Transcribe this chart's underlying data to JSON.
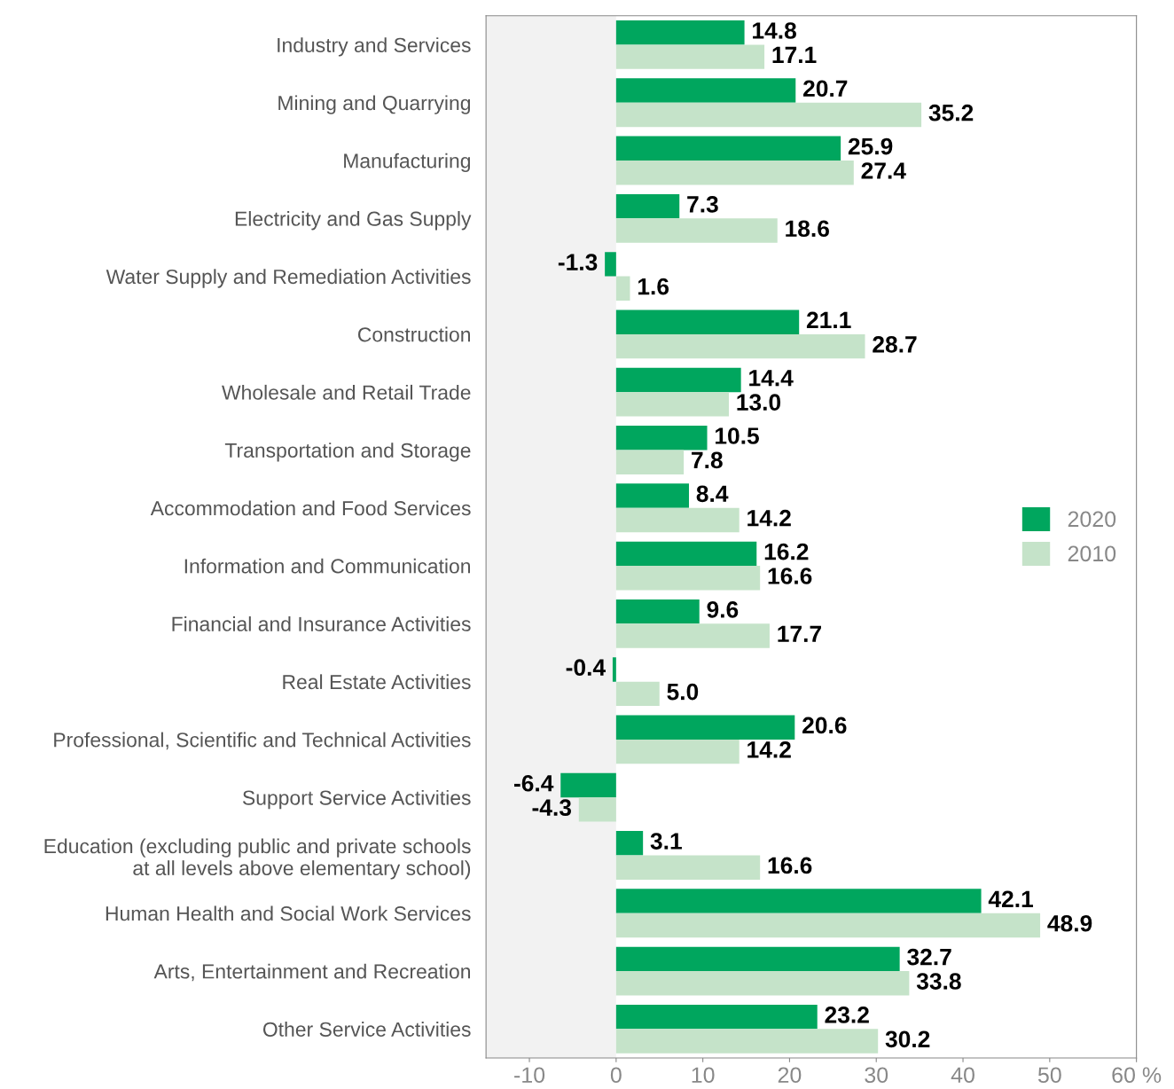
{
  "chart_data": {
    "type": "bar",
    "orientation": "horizontal",
    "categories": [
      "Industry and Services",
      "Mining and Quarrying",
      "Manufacturing",
      "Electricity and Gas Supply",
      "Water Supply and Remediation Activities",
      "Construction",
      "Wholesale and Retail Trade",
      "Transportation and Storage",
      "Accommodation and Food Services",
      "Information and Communication",
      "Financial and Insurance Activities",
      "Real Estate Activities",
      "Professional, Scientific and Technical Activities",
      "Support Service Activities",
      "Education (excluding public and private schools\nat all levels above elementary school)",
      "Human Health and Social Work Services",
      "Arts, Entertainment and Recreation",
      "Other Service Activities"
    ],
    "series": [
      {
        "name": "2020",
        "color": "#00a65e",
        "values": [
          14.8,
          20.7,
          25.9,
          7.3,
          -1.3,
          21.1,
          14.4,
          10.5,
          8.4,
          16.2,
          9.6,
          -0.4,
          20.6,
          -6.4,
          3.1,
          42.1,
          32.7,
          23.2
        ],
        "value_labels": [
          "14.8",
          "20.7",
          "25.9",
          "7.3",
          "-1.3",
          "21.1",
          "14.4",
          "10.5",
          "8.4",
          "16.2",
          "9.6",
          "-0.4",
          "20.6",
          "-6.4",
          "3.1",
          "42.1",
          "32.7",
          "23.2"
        ]
      },
      {
        "name": "2010",
        "color": "#c5e3c9",
        "values": [
          17.1,
          35.2,
          27.4,
          18.6,
          1.6,
          28.7,
          13.0,
          7.8,
          14.2,
          16.6,
          17.7,
          5.0,
          14.2,
          -4.3,
          16.6,
          48.9,
          33.8,
          30.2
        ],
        "value_labels": [
          "17.1",
          "35.2",
          "27.4",
          "18.6",
          "1.6",
          "28.7",
          "13.0",
          "7.8",
          "14.2",
          "16.6",
          "17.7",
          "5.0",
          "14.2",
          "-4.3",
          "16.6",
          "48.9",
          "33.8",
          "30.2"
        ]
      }
    ],
    "xlim": [
      -15,
      60
    ],
    "xticks": [
      -10,
      0,
      10,
      20,
      30,
      40,
      50,
      {
        "value": 60,
        "label": "60 %"
      }
    ],
    "bands": [
      {
        "axis": "x",
        "from": -15,
        "to": 0,
        "color": "#f2f2f2"
      }
    ],
    "grid": false,
    "legend": "right"
  }
}
